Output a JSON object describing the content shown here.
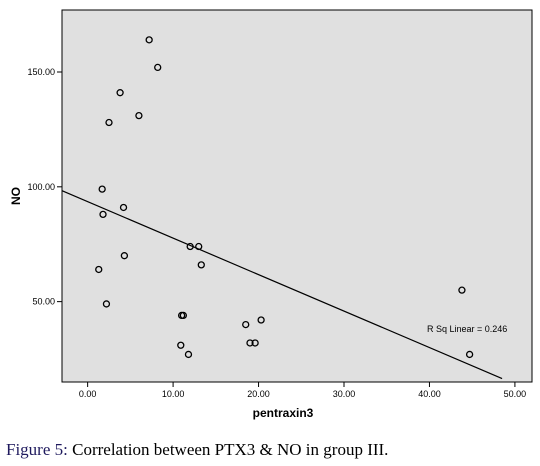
{
  "chart_data": {
    "type": "scatter",
    "xlabel": "pentraxin3",
    "ylabel": "NO",
    "xlim": [
      -3,
      52
    ],
    "ylim": [
      15,
      177
    ],
    "x_ticks": [
      0,
      10,
      20,
      30,
      40,
      50
    ],
    "x_tick_labels": [
      "0.00",
      "10.00",
      "20.00",
      "30.00",
      "40.00",
      "50.00"
    ],
    "y_ticks": [
      50,
      100,
      150
    ],
    "y_tick_labels": [
      "50.00",
      "100.00",
      "150.00"
    ],
    "grid": false,
    "plot_background": "#e0e0e0",
    "points": [
      {
        "x": 7.2,
        "y": 164
      },
      {
        "x": 8.2,
        "y": 152
      },
      {
        "x": 3.8,
        "y": 141
      },
      {
        "x": 2.5,
        "y": 128
      },
      {
        "x": 6.0,
        "y": 131
      },
      {
        "x": 1.7,
        "y": 99
      },
      {
        "x": 4.2,
        "y": 91
      },
      {
        "x": 1.8,
        "y": 88
      },
      {
        "x": 4.3,
        "y": 70
      },
      {
        "x": 1.3,
        "y": 64
      },
      {
        "x": 2.2,
        "y": 49
      },
      {
        "x": 12.0,
        "y": 74
      },
      {
        "x": 13.0,
        "y": 74
      },
      {
        "x": 13.3,
        "y": 66
      },
      {
        "x": 11.0,
        "y": 44
      },
      {
        "x": 11.2,
        "y": 44
      },
      {
        "x": 10.9,
        "y": 31
      },
      {
        "x": 11.8,
        "y": 27
      },
      {
        "x": 18.5,
        "y": 40
      },
      {
        "x": 20.3,
        "y": 42
      },
      {
        "x": 19.0,
        "y": 32
      },
      {
        "x": 19.6,
        "y": 32
      },
      {
        "x": 43.8,
        "y": 55
      },
      {
        "x": 44.7,
        "y": 27
      }
    ],
    "fit_line": {
      "x0": -3,
      "y0": 98.3,
      "x1": 48.5,
      "y1": 16.5
    },
    "annotation": "R Sq Linear = 0.246"
  },
  "caption": {
    "label": "Figure 5:",
    "text": " Correlation between PTX3 & NO in group III."
  }
}
